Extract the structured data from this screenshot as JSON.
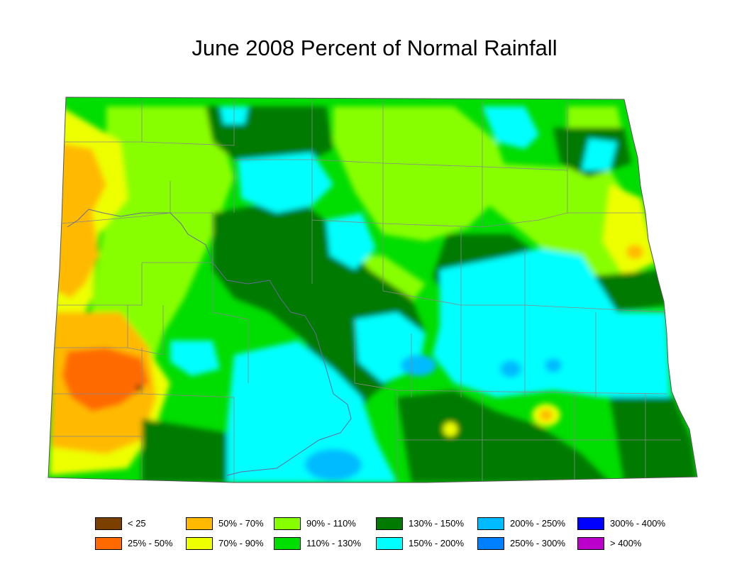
{
  "title": "June 2008 Percent of Normal Rainfall",
  "colors": {
    "lt25": "#7b3f00",
    "p25_50": "#ff6a00",
    "p50_70": "#ffba00",
    "p70_90": "#eeff00",
    "p90_110": "#88ff00",
    "p110_130": "#00dd00",
    "p130_150": "#007a00",
    "p150_200": "#00ffff",
    "p200_250": "#00bbff",
    "p250_300": "#0080ff",
    "p300_400": "#0000ff",
    "gt400": "#bb00cc",
    "county_line": "#888888",
    "river_line": "#6a6a9a"
  },
  "legend": [
    {
      "label": "< 25",
      "color": "#7b3f00"
    },
    {
      "label": "25% - 50%",
      "color": "#ff6a00"
    },
    {
      "label": "50% - 70%",
      "color": "#ffba00"
    },
    {
      "label": "70% - 90%",
      "color": "#eeff00"
    },
    {
      "label": "90% - 110%",
      "color": "#88ff00"
    },
    {
      "label": "110% - 130%",
      "color": "#00dd00"
    },
    {
      "label": "130% - 150%",
      "color": "#007a00"
    },
    {
      "label": "150% - 200%",
      "color": "#00ffff"
    },
    {
      "label": "200% - 250%",
      "color": "#00bbff"
    },
    {
      "label": "250% - 300%",
      "color": "#0080ff"
    },
    {
      "label": "300% - 400%",
      "color": "#0000ff"
    },
    {
      "label": "> 400%",
      "color": "#bb00cc"
    }
  ]
}
